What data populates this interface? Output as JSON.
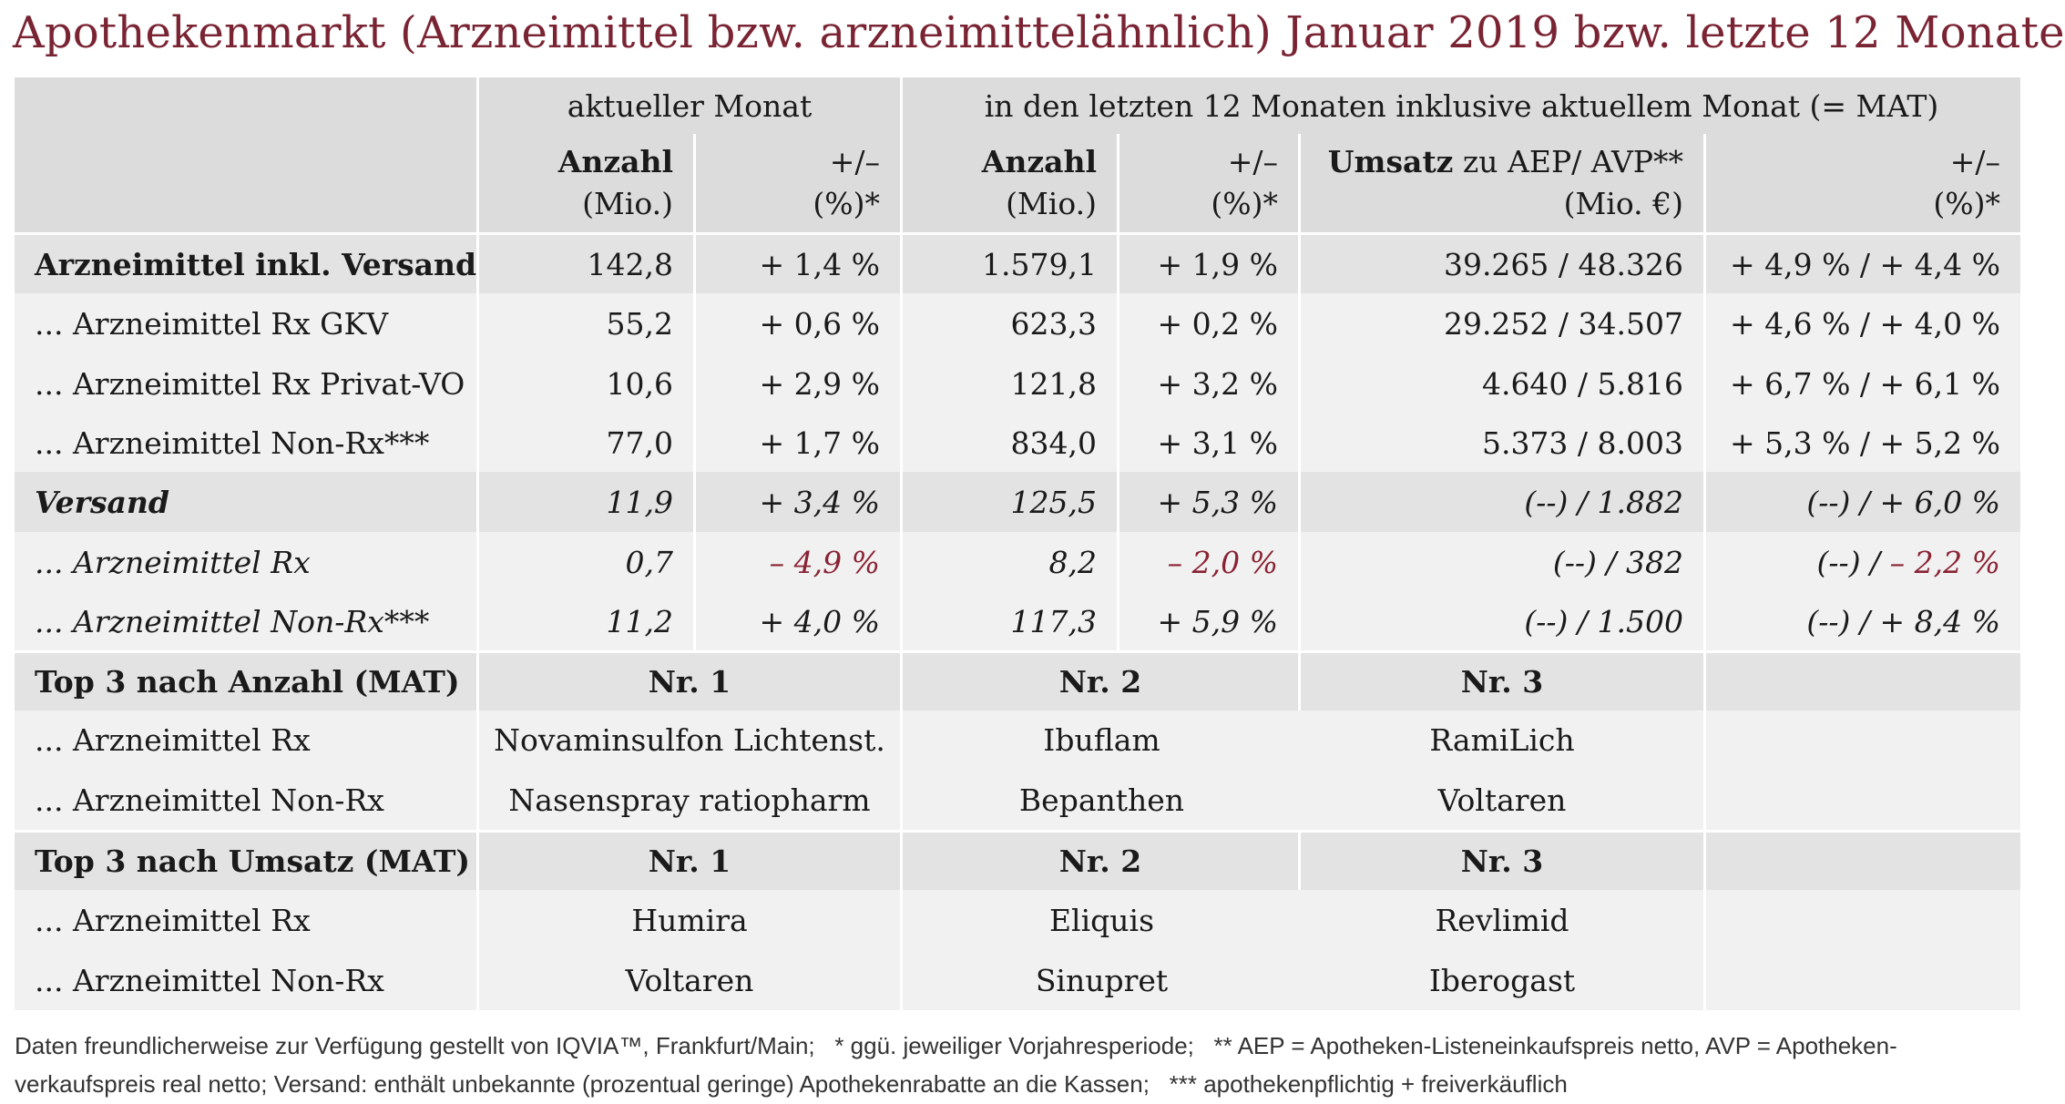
{
  "title": "Apothekenmarkt (Arzneimittel bzw. arzneimittelähnlich) Januar 2019 bzw. letzte 12 Monate",
  "header": {
    "group_current": "aktueller Monat",
    "group_mat": "in den letzten 12 Monaten inklusive aktuellem Monat (= MAT)",
    "anzahl": "Anzahl",
    "anzahl_unit": "(Mio.)",
    "change": "+/–",
    "change_unit": "(%)*",
    "umsatz_bold": "Umsatz",
    "umsatz_rest": " zu AEP/ AVP**",
    "umsatz_unit": "(Mio. €)"
  },
  "rows": [
    {
      "label": "Arzneimittel inkl. Versand",
      "a": "142,8",
      "ac": "+ 1,4 %",
      "m": "1.579,1",
      "mc": "+ 1,9 %",
      "u": "39.265 / 48.326",
      "uc": "+ 4,9 % / + 4,4 %"
    },
    {
      "label": "... Arzneimittel Rx GKV",
      "a": "55,2",
      "ac": "+ 0,6 %",
      "m": "623,3",
      "mc": "+ 0,2 %",
      "u": "29.252 / 34.507",
      "uc": "+ 4,6 % / + 4,0 %"
    },
    {
      "label": "... Arzneimittel Rx Privat-VO",
      "a": "10,6",
      "ac": "+ 2,9 %",
      "m": "121,8",
      "mc": "+ 3,2 %",
      "u": "4.640 / 5.816",
      "uc": "+ 6,7 % / + 6,1 %"
    },
    {
      "label": "... Arzneimittel Non-Rx***",
      "a": "77,0",
      "ac": "+ 1,7 %",
      "m": "834,0",
      "mc": "+ 3,1 %",
      "u": "5.373 / 8.003",
      "uc": "+ 5,3 % / + 5,2 %"
    },
    {
      "label": "Versand",
      "a": "11,9",
      "ac": "+ 3,4 %",
      "m": "125,5",
      "mc": "+ 5,3 %",
      "u": "(--) / 1.882",
      "uc": "(--) / + 6,0 %"
    },
    {
      "label": "... Arzneimittel Rx",
      "a": "0,7",
      "ac": "– 4,9 %",
      "m": "8,2",
      "mc": "– 2,0 %",
      "u": "(--) / 382",
      "uc_pre": "(--) / ",
      "uc_neg": "– 2,2 %"
    },
    {
      "label": "... Arzneimittel Non-Rx***",
      "a": "11,2",
      "ac": "+ 4,0 %",
      "m": "117,3",
      "mc": "+ 5,9 %",
      "u": "(--) / 1.500",
      "uc": "(--) / + 8,4 %"
    }
  ],
  "top_anzahl": {
    "heading": "Top 3 nach Anzahl (MAT)",
    "nr1": "Nr. 1",
    "nr2": "Nr. 2",
    "nr3": "Nr. 3",
    "rx_label": "... Arzneimittel Rx",
    "rx": [
      "Novaminsulfon Lichtenst.",
      "Ibuflam",
      "RamiLich"
    ],
    "nonrx_label": "... Arzneimittel Non-Rx",
    "nonrx": [
      "Nasenspray ratiopharm",
      "Bepanthen",
      "Voltaren"
    ]
  },
  "top_umsatz": {
    "heading": "Top 3 nach Umsatz (MAT)",
    "nr1": "Nr. 1",
    "nr2": "Nr. 2",
    "nr3": "Nr. 3",
    "rx_label": "... Arzneimittel Rx",
    "rx": [
      "Humira",
      "Eliquis",
      "Revlimid"
    ],
    "nonrx_label": "... Arzneimittel Non-Rx",
    "nonrx": [
      "Voltaren",
      "Sinupret",
      "Iberogast"
    ]
  },
  "footnote": {
    "line1": "Daten freundlicherweise zur Verfügung gestellt von IQVIA™, Frankfurt/Main;   * ggü. jeweiliger Vorjahresperiode;   ** AEP = Apotheken-Listeneinkaufspreis netto, AVP = Apotheken-",
    "line2": "verkaufspreis real netto; Versand: enthält unbekannte (prozentual geringe) Apothekenrabatte an die Kassen;   *** apothekenpflichtig + freiverkäuflich"
  },
  "colors": {
    "title": "#7a2433",
    "negative": "#8a2233"
  }
}
